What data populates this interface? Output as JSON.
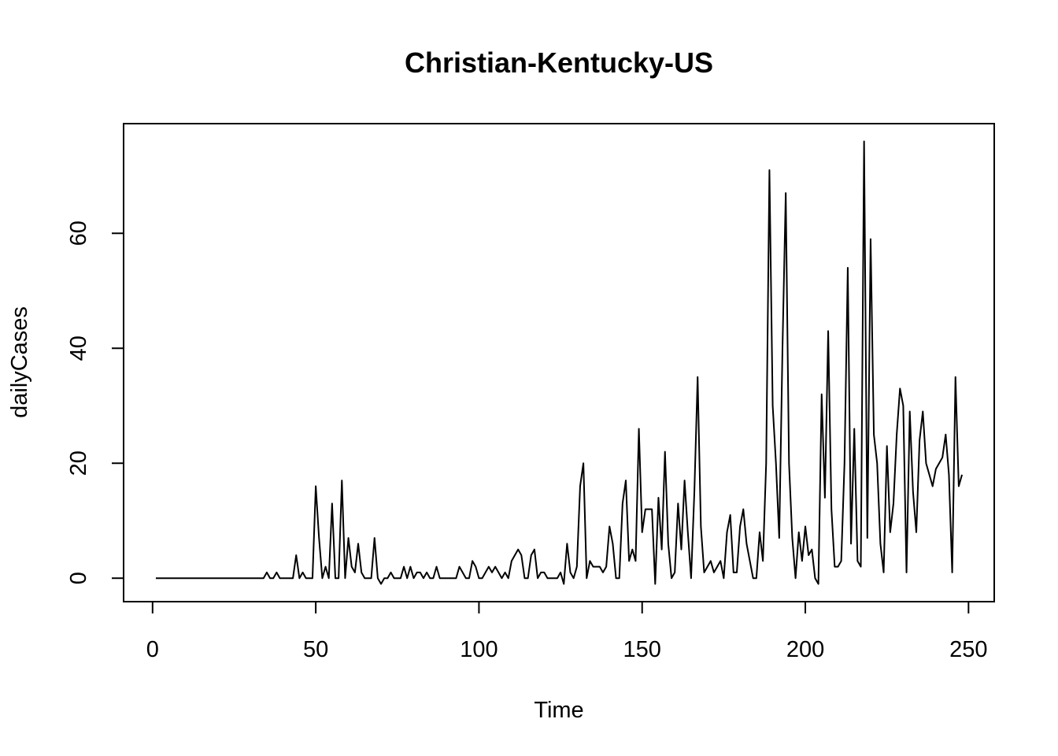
{
  "chart_data": {
    "type": "line",
    "title": "Christian-Kentucky-US",
    "xlabel": "Time",
    "ylabel": "dailyCases",
    "xlim": [
      1,
      248
    ],
    "ylim": [
      -1,
      76
    ],
    "x_ticks": [
      0,
      50,
      100,
      150,
      200,
      250
    ],
    "y_ticks": [
      0,
      20,
      40,
      60
    ],
    "grid": false,
    "legend": "none",
    "line_color": "#000000",
    "x_start": 1,
    "series": [
      {
        "values": [
          0,
          0,
          0,
          0,
          0,
          0,
          0,
          0,
          0,
          0,
          0,
          0,
          0,
          0,
          0,
          0,
          0,
          0,
          0,
          0,
          0,
          0,
          0,
          0,
          0,
          0,
          0,
          0,
          0,
          0,
          0,
          0,
          0,
          0,
          1,
          0,
          0,
          1,
          0,
          0,
          0,
          0,
          0,
          4,
          0,
          1,
          0,
          0,
          0,
          16,
          7,
          0,
          2,
          0,
          13,
          0,
          0,
          17,
          0,
          7,
          2,
          1,
          6,
          1,
          0,
          0,
          0,
          7,
          0,
          -1,
          0,
          0,
          1,
          0,
          0,
          0,
          2,
          0,
          2,
          0,
          1,
          1,
          0,
          1,
          0,
          0,
          2,
          0,
          0,
          0,
          0,
          0,
          0,
          2,
          1,
          0,
          0,
          3,
          2,
          0,
          0,
          1,
          2,
          1,
          2,
          1,
          0,
          1,
          0,
          3,
          4,
          5,
          4,
          0,
          0,
          4,
          5,
          0,
          1,
          1,
          0,
          0,
          0,
          0,
          1,
          -1,
          6,
          1,
          0,
          2,
          16,
          20,
          0,
          3,
          2,
          2,
          2,
          1,
          2,
          9,
          6,
          0,
          0,
          13,
          17,
          3,
          5,
          3,
          26,
          8,
          12,
          12,
          12,
          -1,
          14,
          5,
          22,
          6,
          0,
          1,
          13,
          5,
          17,
          8,
          0,
          15,
          35,
          9,
          1,
          2,
          3,
          1,
          2,
          3,
          0,
          8,
          11,
          1,
          1,
          9,
          12,
          6,
          3,
          0,
          0,
          8,
          3,
          20,
          71,
          30,
          20,
          7,
          40,
          67,
          20,
          7,
          0,
          8,
          3,
          9,
          4,
          5,
          0,
          -1,
          32,
          14,
          43,
          12,
          2,
          2,
          3,
          20,
          54,
          6,
          26,
          3,
          2,
          76,
          7,
          59,
          25,
          20,
          6,
          1,
          23,
          8,
          13,
          25,
          33,
          30,
          1,
          29,
          15,
          8,
          24,
          29,
          20,
          18,
          16,
          19,
          20,
          21,
          25,
          18,
          1,
          35,
          16,
          18
        ]
      }
    ]
  }
}
